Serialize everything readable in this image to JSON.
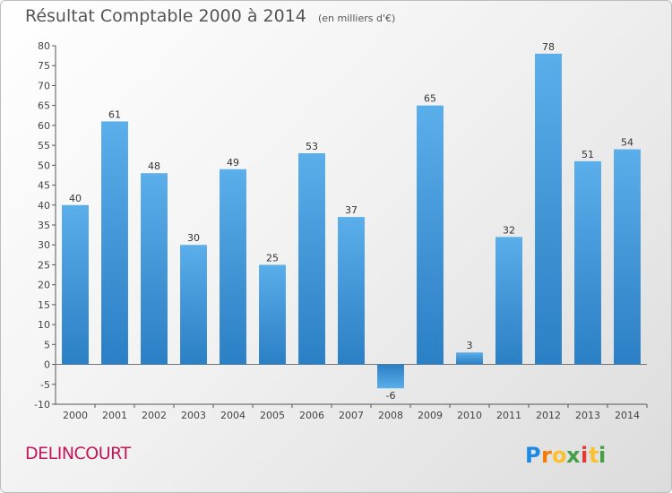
{
  "title": "Résultat Comptable 2000 à 2014",
  "subtitle": "(en milliers d'€)",
  "commune": "DELINCOURT",
  "logo": {
    "letters": [
      "P",
      "r",
      "o",
      "x",
      "i",
      "t",
      "i"
    ]
  },
  "colors": {
    "bar_top": "#5aaeea",
    "bar_bottom": "#2b7fc4",
    "title": "#555555",
    "commune": "#c2185b"
  },
  "chart_data": {
    "type": "bar",
    "categories": [
      "2000",
      "2001",
      "2002",
      "2003",
      "2004",
      "2005",
      "2006",
      "2007",
      "2008",
      "2009",
      "2010",
      "2011",
      "2012",
      "2013",
      "2014"
    ],
    "values": [
      40,
      61,
      48,
      30,
      49,
      25,
      53,
      37,
      -6,
      65,
      3,
      32,
      78,
      51,
      54
    ],
    "ylim": [
      -10,
      80
    ],
    "yticks": [
      -10,
      -5,
      0,
      5,
      10,
      15,
      20,
      25,
      30,
      35,
      40,
      45,
      50,
      55,
      60,
      65,
      70,
      75,
      80
    ],
    "grid": false,
    "data_labels": true
  }
}
